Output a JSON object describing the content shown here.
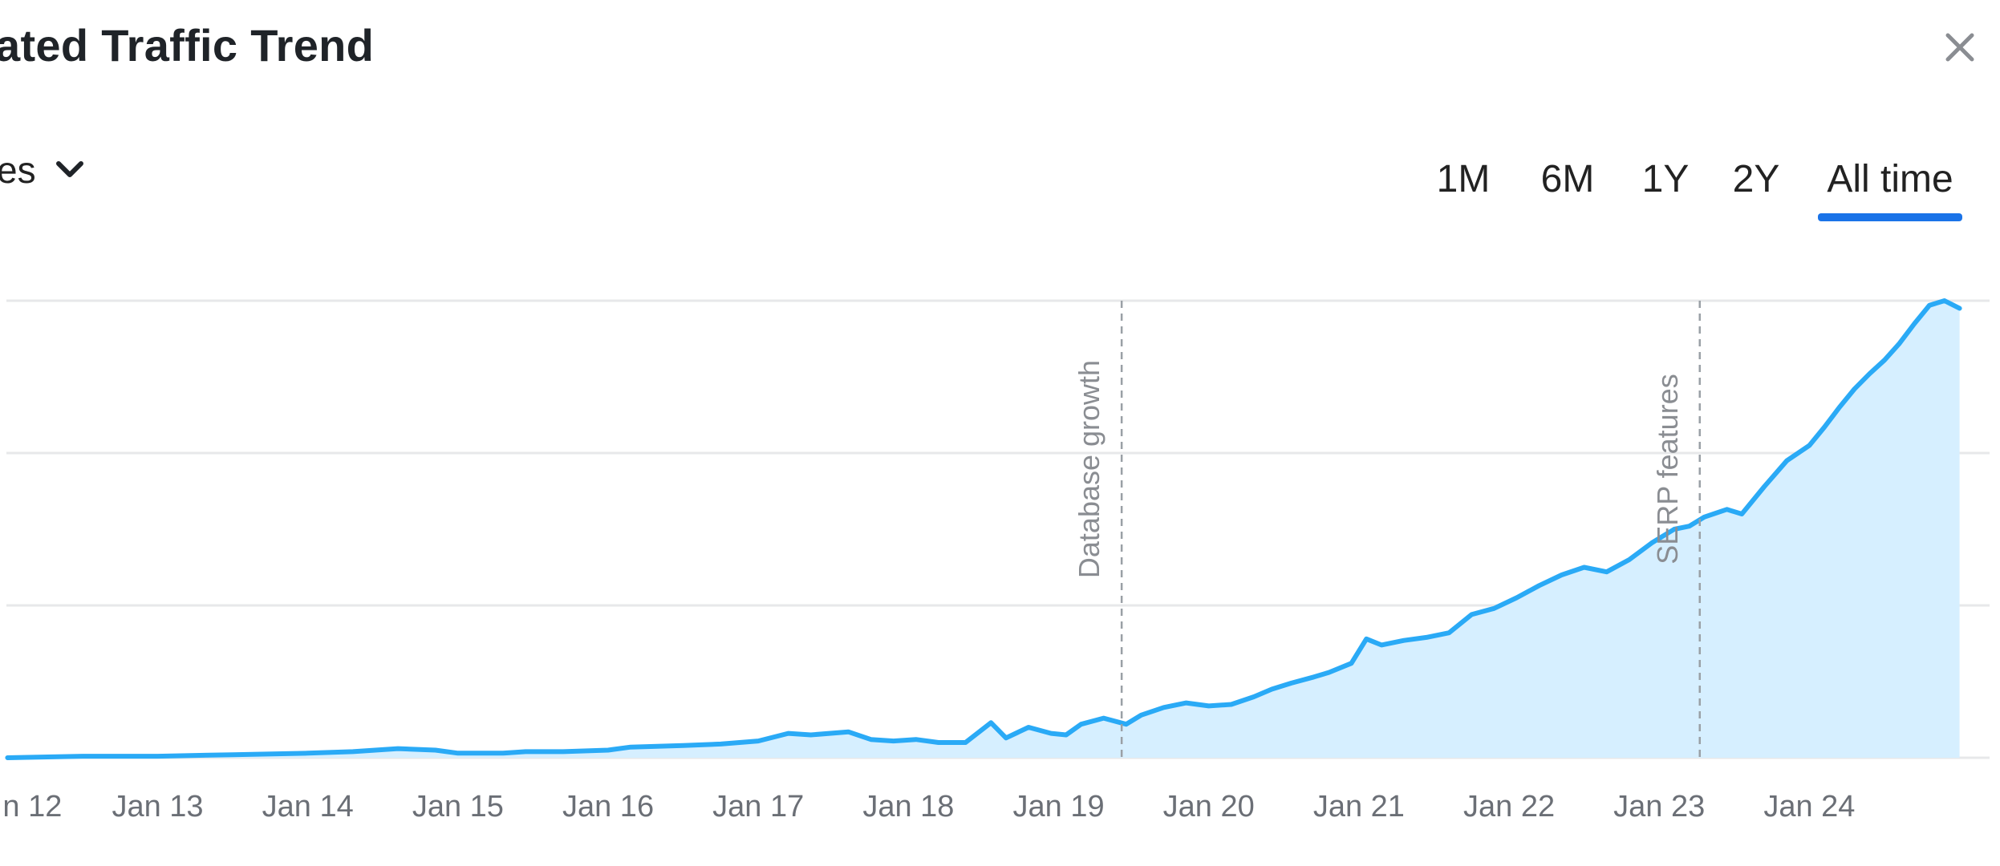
{
  "header": {
    "title": "ated Traffic Trend",
    "close_icon": "close-icon"
  },
  "controls": {
    "dropdown_label": "es",
    "dropdown_icon": "chevron-down-icon",
    "periods": [
      "1M",
      "6M",
      "1Y",
      "2Y",
      "All time"
    ],
    "active_period": "All time"
  },
  "colors": {
    "line": "#2aaaf6",
    "fill": "#d6efff",
    "grid": "#e7e8ea",
    "active_tab": "#1a73e8",
    "annotation_line": "#9aa0a6"
  },
  "chart_data": {
    "type": "area",
    "title": "",
    "xlabel": "",
    "ylabel": "",
    "grid": true,
    "x_ticks": [
      "n 12",
      "Jan 13",
      "Jan 14",
      "Jan 15",
      "Jan 16",
      "Jan 17",
      "Jan 18",
      "Jan 19",
      "Jan 20",
      "Jan 21",
      "Jan 22",
      "Jan 23",
      "Jan 24"
    ],
    "x_range": [
      2011.95,
      2025.2
    ],
    "y_range": [
      0,
      3
    ],
    "annotations": [
      {
        "x": 2019.42,
        "label": "Database growth"
      },
      {
        "x": 2023.27,
        "label": "SERP features"
      }
    ],
    "series": [
      {
        "values": [
          [
            2012.0,
            0.0
          ],
          [
            2012.5,
            0.01
          ],
          [
            2013.0,
            0.01
          ],
          [
            2013.5,
            0.02
          ],
          [
            2014.0,
            0.03
          ],
          [
            2014.3,
            0.04
          ],
          [
            2014.6,
            0.06
          ],
          [
            2014.85,
            0.05
          ],
          [
            2015.0,
            0.03
          ],
          [
            2015.3,
            0.03
          ],
          [
            2015.45,
            0.04
          ],
          [
            2015.7,
            0.04
          ],
          [
            2016.0,
            0.05
          ],
          [
            2016.15,
            0.07
          ],
          [
            2016.5,
            0.08
          ],
          [
            2016.75,
            0.09
          ],
          [
            2017.0,
            0.11
          ],
          [
            2017.2,
            0.16
          ],
          [
            2017.35,
            0.15
          ],
          [
            2017.6,
            0.17
          ],
          [
            2017.75,
            0.12
          ],
          [
            2017.9,
            0.11
          ],
          [
            2018.05,
            0.12
          ],
          [
            2018.2,
            0.1
          ],
          [
            2018.38,
            0.1
          ],
          [
            2018.55,
            0.23
          ],
          [
            2018.65,
            0.13
          ],
          [
            2018.8,
            0.2
          ],
          [
            2018.95,
            0.16
          ],
          [
            2019.05,
            0.15
          ],
          [
            2019.15,
            0.22
          ],
          [
            2019.3,
            0.26
          ],
          [
            2019.45,
            0.22
          ],
          [
            2019.55,
            0.28
          ],
          [
            2019.7,
            0.33
          ],
          [
            2019.85,
            0.36
          ],
          [
            2020.0,
            0.34
          ],
          [
            2020.15,
            0.35
          ],
          [
            2020.3,
            0.4
          ],
          [
            2020.42,
            0.45
          ],
          [
            2020.55,
            0.49
          ],
          [
            2020.7,
            0.53
          ],
          [
            2020.8,
            0.56
          ],
          [
            2020.95,
            0.62
          ],
          [
            2021.05,
            0.78
          ],
          [
            2021.15,
            0.74
          ],
          [
            2021.3,
            0.77
          ],
          [
            2021.45,
            0.79
          ],
          [
            2021.6,
            0.82
          ],
          [
            2021.75,
            0.94
          ],
          [
            2021.9,
            0.98
          ],
          [
            2022.05,
            1.05
          ],
          [
            2022.2,
            1.13
          ],
          [
            2022.35,
            1.2
          ],
          [
            2022.5,
            1.25
          ],
          [
            2022.65,
            1.22
          ],
          [
            2022.8,
            1.3
          ],
          [
            2022.95,
            1.41
          ],
          [
            2023.1,
            1.5
          ],
          [
            2023.2,
            1.52
          ],
          [
            2023.3,
            1.58
          ],
          [
            2023.45,
            1.63
          ],
          [
            2023.55,
            1.6
          ],
          [
            2023.7,
            1.78
          ],
          [
            2023.85,
            1.95
          ],
          [
            2024.0,
            2.05
          ],
          [
            2024.1,
            2.17
          ],
          [
            2024.2,
            2.3
          ],
          [
            2024.3,
            2.42
          ],
          [
            2024.4,
            2.52
          ],
          [
            2024.5,
            2.61
          ],
          [
            2024.6,
            2.72
          ],
          [
            2024.7,
            2.85
          ],
          [
            2024.8,
            2.97
          ],
          [
            2024.9,
            3.0
          ],
          [
            2025.0,
            2.95
          ]
        ]
      }
    ]
  }
}
